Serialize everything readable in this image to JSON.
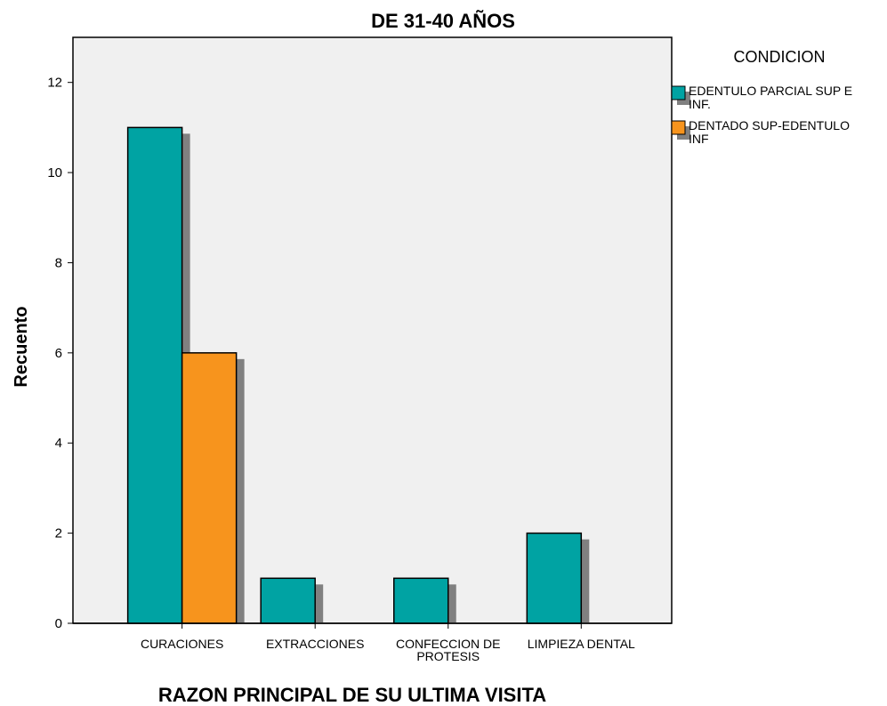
{
  "chart_data": {
    "type": "bar",
    "title": "DE 31-40 AÑOS",
    "xlabel": "RAZON PRINCIPAL DE SU ULTIMA VISITA",
    "ylabel": "Recuento",
    "categories": [
      [
        "CURACIONES"
      ],
      [
        "EXTRACCIONES"
      ],
      [
        "CONFECCION DE",
        "PROTESIS"
      ],
      [
        "LIMPIEZA DENTAL"
      ]
    ],
    "series": [
      {
        "name": [
          "EDENTULO PARCIAL SUP E",
          "INF."
        ],
        "color": "#00A3A3",
        "values": [
          11,
          1,
          1,
          2
        ]
      },
      {
        "name": [
          "DENTADO SUP-EDENTULO",
          "INF"
        ],
        "color": "#F7941D",
        "values": [
          6,
          0,
          0,
          0
        ]
      }
    ],
    "ylim": [
      0,
      13
    ],
    "yticks": [
      0,
      2,
      4,
      6,
      8,
      10,
      12
    ],
    "legend_title": "CONDICION",
    "legend_position": "right",
    "grid": false,
    "plot_background": "#F0F0F0",
    "shadow_color": "#808080"
  }
}
